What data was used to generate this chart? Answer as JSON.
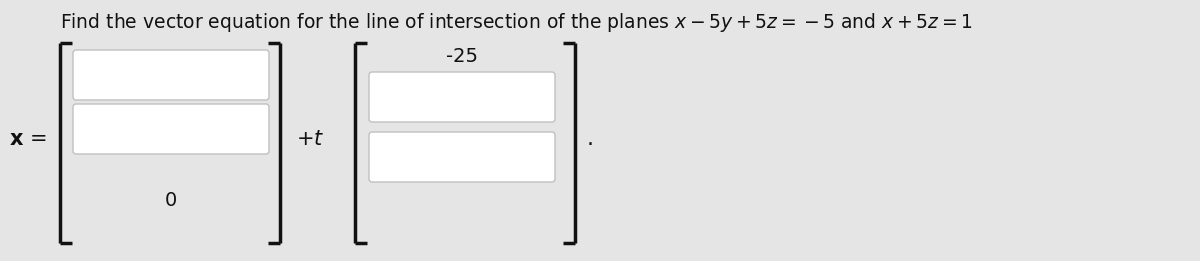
{
  "bg_color": "#e5e5e5",
  "card_color": "#f2f2f2",
  "title_plain": "Find the vector equation for the line of intersection of the planes ",
  "title_math1": "$x - 5y + 5z = -5$",
  "title_and": " and ",
  "title_math2": "$x + 5z = 1$",
  "title_fontsize": 13.5,
  "x_label_bold": "x",
  "x_equals": " =",
  "plus_t": "+ t",
  "zero_label": "0",
  "minus25_label": "-25",
  "period": ".",
  "box_fill": "#ffffff",
  "box_edge": "#c0c0c0",
  "bracket_color": "#111111",
  "text_color": "#111111",
  "lw_bracket": 2.5,
  "bracket_serif": 0.12
}
